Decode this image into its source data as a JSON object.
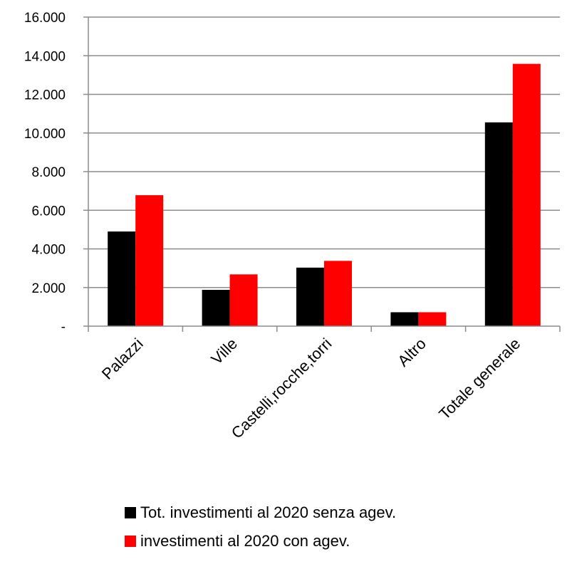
{
  "chart_data": {
    "type": "bar",
    "categories": [
      "Palazzi",
      "Ville",
      "Castelli,rocche,torri",
      "Altro",
      "Totale generale"
    ],
    "series": [
      {
        "name": "Tot. investimenti al 2020 senza agev.",
        "color": "#000000",
        "values": [
          4900,
          1880,
          3030,
          720,
          10550
        ]
      },
      {
        "name": "investimenti al 2020 con agev.",
        "color": "#ff0000",
        "values": [
          6780,
          2680,
          3380,
          720,
          13580
        ]
      }
    ],
    "ylim": [
      0,
      16000
    ],
    "yticks": [
      {
        "value": 0,
        "label": "-"
      },
      {
        "value": 2000,
        "label": "2.000"
      },
      {
        "value": 4000,
        "label": "4.000"
      },
      {
        "value": 6000,
        "label": "6.000"
      },
      {
        "value": 8000,
        "label": "8.000"
      },
      {
        "value": 10000,
        "label": "10.000"
      },
      {
        "value": 12000,
        "label": "12.000"
      },
      {
        "value": 14000,
        "label": "14.000"
      },
      {
        "value": 16000,
        "label": "16.000"
      }
    ],
    "grid": true,
    "legend_position": "bottom"
  }
}
